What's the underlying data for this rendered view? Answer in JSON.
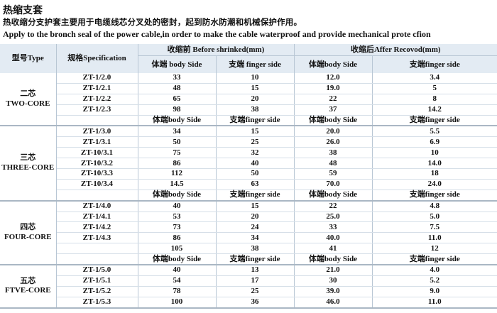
{
  "title": "热缩支套",
  "description_cn": "热收缩分支护套主要用于电缆线芯分叉处的密封，起到防水防潮和机械保护作用。",
  "description_en": "Apply to the bronch seal of the power cable,in order to make the cable waterproof and provide mechanical prote cfion",
  "table": {
    "headers": {
      "type": "型号Type",
      "spec": "规格Specification",
      "before": "收缩前 Before shrinked(mm)",
      "after": "收缩后Affer Recovod(mm)",
      "before_body": "体端 body Side",
      "before_finger": "支端 finger side",
      "after_body": "体端body Side",
      "after_finger": "支端finger side"
    },
    "subheader": [
      "体端body Side",
      "支端finger side",
      "体端body Side",
      "支端finger side"
    ],
    "groups": [
      {
        "name_cn": "二芯",
        "name_en": "TWO-CORE",
        "rows": [
          [
            "ZT-1/2.0",
            "33",
            "10",
            "12.0",
            "3.4"
          ],
          [
            "ZT-1/2.1",
            "48",
            "15",
            "19.0",
            "5"
          ],
          [
            "ZT-1/2.2",
            "65",
            "20",
            "22",
            "8"
          ],
          [
            "ZT-1/2.3",
            "98",
            "38",
            "37",
            "14.2"
          ]
        ]
      },
      {
        "name_cn": "三芯",
        "name_en": "THREE-CORE",
        "rows": [
          [
            "ZT-1/3.0",
            "34",
            "15",
            "20.0",
            "5.5"
          ],
          [
            "ZT-1/3.1",
            "50",
            "25",
            "26.0",
            "6.9"
          ],
          [
            "ZT-10/3.1",
            "75",
            "32",
            "38",
            "10"
          ],
          [
            "ZT-10/3.2",
            "86",
            "40",
            "48",
            "14.0"
          ],
          [
            "ZT-10/3.3",
            "112",
            "50",
            "59",
            "18"
          ],
          [
            "ZT-10/3.4",
            "14.5",
            "63",
            "70.0",
            "24.0"
          ]
        ]
      },
      {
        "name_cn": "四芯",
        "name_en": "FOUR-CORE",
        "rows": [
          [
            "ZT-1/4.0",
            "40",
            "15",
            "22",
            "4.8"
          ],
          [
            "ZT-1/4.1",
            "53",
            "20",
            "25.0",
            "5.0"
          ],
          [
            "ZT-1/4.2",
            "73",
            "24",
            "33",
            "7.5"
          ],
          [
            "ZT-1/4.3",
            "86",
            "34",
            "40.0",
            "11.0"
          ],
          [
            "",
            "105",
            "38",
            "41",
            "12"
          ]
        ]
      },
      {
        "name_cn": "五芯",
        "name_en": "FTVE-CORE",
        "rows": [
          [
            "ZT-1/5.0",
            "40",
            "13",
            "21.0",
            "4.0"
          ],
          [
            "ZT-1/5.1",
            "54",
            "17",
            "30",
            "5.2"
          ],
          [
            "ZT-1/5.2",
            "78",
            "25",
            "39.0",
            "9.0"
          ],
          [
            "ZT-1/5.3",
            "100",
            "36",
            "46.0",
            "11.0"
          ]
        ]
      }
    ]
  }
}
